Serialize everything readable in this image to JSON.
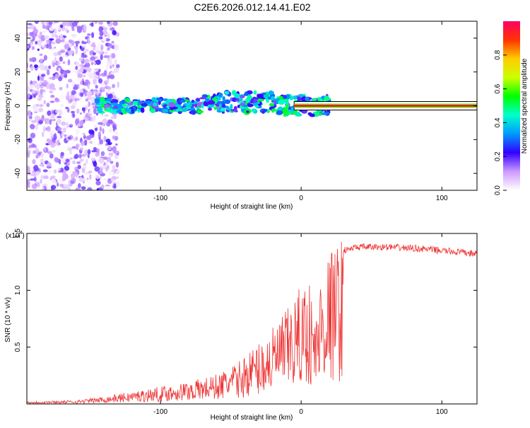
{
  "title": "C2E6.2026.012.14.41.E02",
  "chart_data": [
    {
      "type": "heatmap",
      "title": "C2E6.2026.012.14.41.E02",
      "xlabel": "Height of straight line (km)",
      "ylabel": "Frequency (Hz)",
      "xlim": [
        -195,
        125
      ],
      "ylim": [
        -50,
        50
      ],
      "xticks": [
        -100,
        0,
        100
      ],
      "yticks": [
        -40,
        -20,
        0,
        20,
        40
      ],
      "colorbar": {
        "label": "Normalized spectral amplitude",
        "range": [
          0,
          1
        ],
        "ticks": [
          0.0,
          0.2,
          0.4,
          0.6,
          0.8
        ],
        "stops": [
          "#ffffff",
          "#cc99ff",
          "#3300ff",
          "#0099ff",
          "#00ffcc",
          "#00ff00",
          "#ccff00",
          "#ffcc00",
          "#ff3300",
          "#ff0066"
        ]
      },
      "regions": [
        {
          "name": "noise",
          "x": [
            -195,
            -130
          ],
          "freq": [
            -50,
            50
          ],
          "amplitude": 0.12
        },
        {
          "name": "band",
          "x": [
            -145,
            20
          ],
          "freq": [
            -10,
            12
          ],
          "amplitude": 0.35
        },
        {
          "name": "tone",
          "x": [
            -5,
            125
          ],
          "freq": [
            0,
            0
          ],
          "amplitude": 0.95
        }
      ]
    },
    {
      "type": "line",
      "xlabel": "Height of straight line (km)",
      "ylabel": "SNR (10 * v/v)",
      "exponent_label": "(x10",
      "exponent_power": "4",
      "exponent_close": ")",
      "xlim": [
        -195,
        125
      ],
      "ylim": [
        0,
        1.5
      ],
      "xticks": [
        -100,
        0,
        100
      ],
      "yticks": [
        0.5,
        1.0,
        1.5
      ],
      "ytick_labels": [
        "0.5",
        "1.0",
        "1.5"
      ],
      "color": "#ee3333",
      "envelope_x": [
        -195,
        -160,
        -140,
        -120,
        -100,
        -80,
        -60,
        -45,
        -35,
        -25,
        -15,
        -5,
        0,
        5,
        10,
        15,
        22,
        30,
        40,
        60,
        80,
        100,
        125
      ],
      "envelope_y": [
        0.02,
        0.03,
        0.06,
        0.1,
        0.14,
        0.18,
        0.24,
        0.33,
        0.45,
        0.55,
        0.68,
        0.85,
        0.95,
        1.05,
        0.7,
        1.15,
        1.25,
        1.35,
        1.38,
        1.38,
        1.37,
        1.35,
        1.32
      ]
    }
  ]
}
